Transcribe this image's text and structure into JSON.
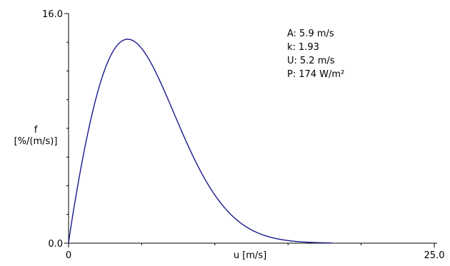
{
  "chart_data": {
    "type": "line",
    "title": "",
    "xlabel": "u [m/s]",
    "ylabel_line1": "f",
    "ylabel_line2": "[%/(m/s)]",
    "x_tick_labels": {
      "min": "0",
      "max": "25.0"
    },
    "y_tick_labels": {
      "min": "0.0",
      "max": "16.0"
    },
    "xlim": [
      0,
      25
    ],
    "ylim": [
      0,
      16
    ],
    "x_minor_ticks": [
      5,
      10,
      15,
      20
    ],
    "y_minor_ticks": [
      2,
      4,
      6,
      8,
      10,
      12,
      14
    ],
    "grid": false,
    "weibull": {
      "A": 5.9,
      "k": 1.93,
      "x_end": 18
    },
    "parameters": [
      {
        "label": "A:",
        "value": "5.9 m/s"
      },
      {
        "label": "k:",
        "value": "1.93"
      },
      {
        "label": "U:",
        "value": "5.2 m/s"
      },
      {
        "label": "P:",
        "value": "174 W/m²"
      }
    ]
  }
}
